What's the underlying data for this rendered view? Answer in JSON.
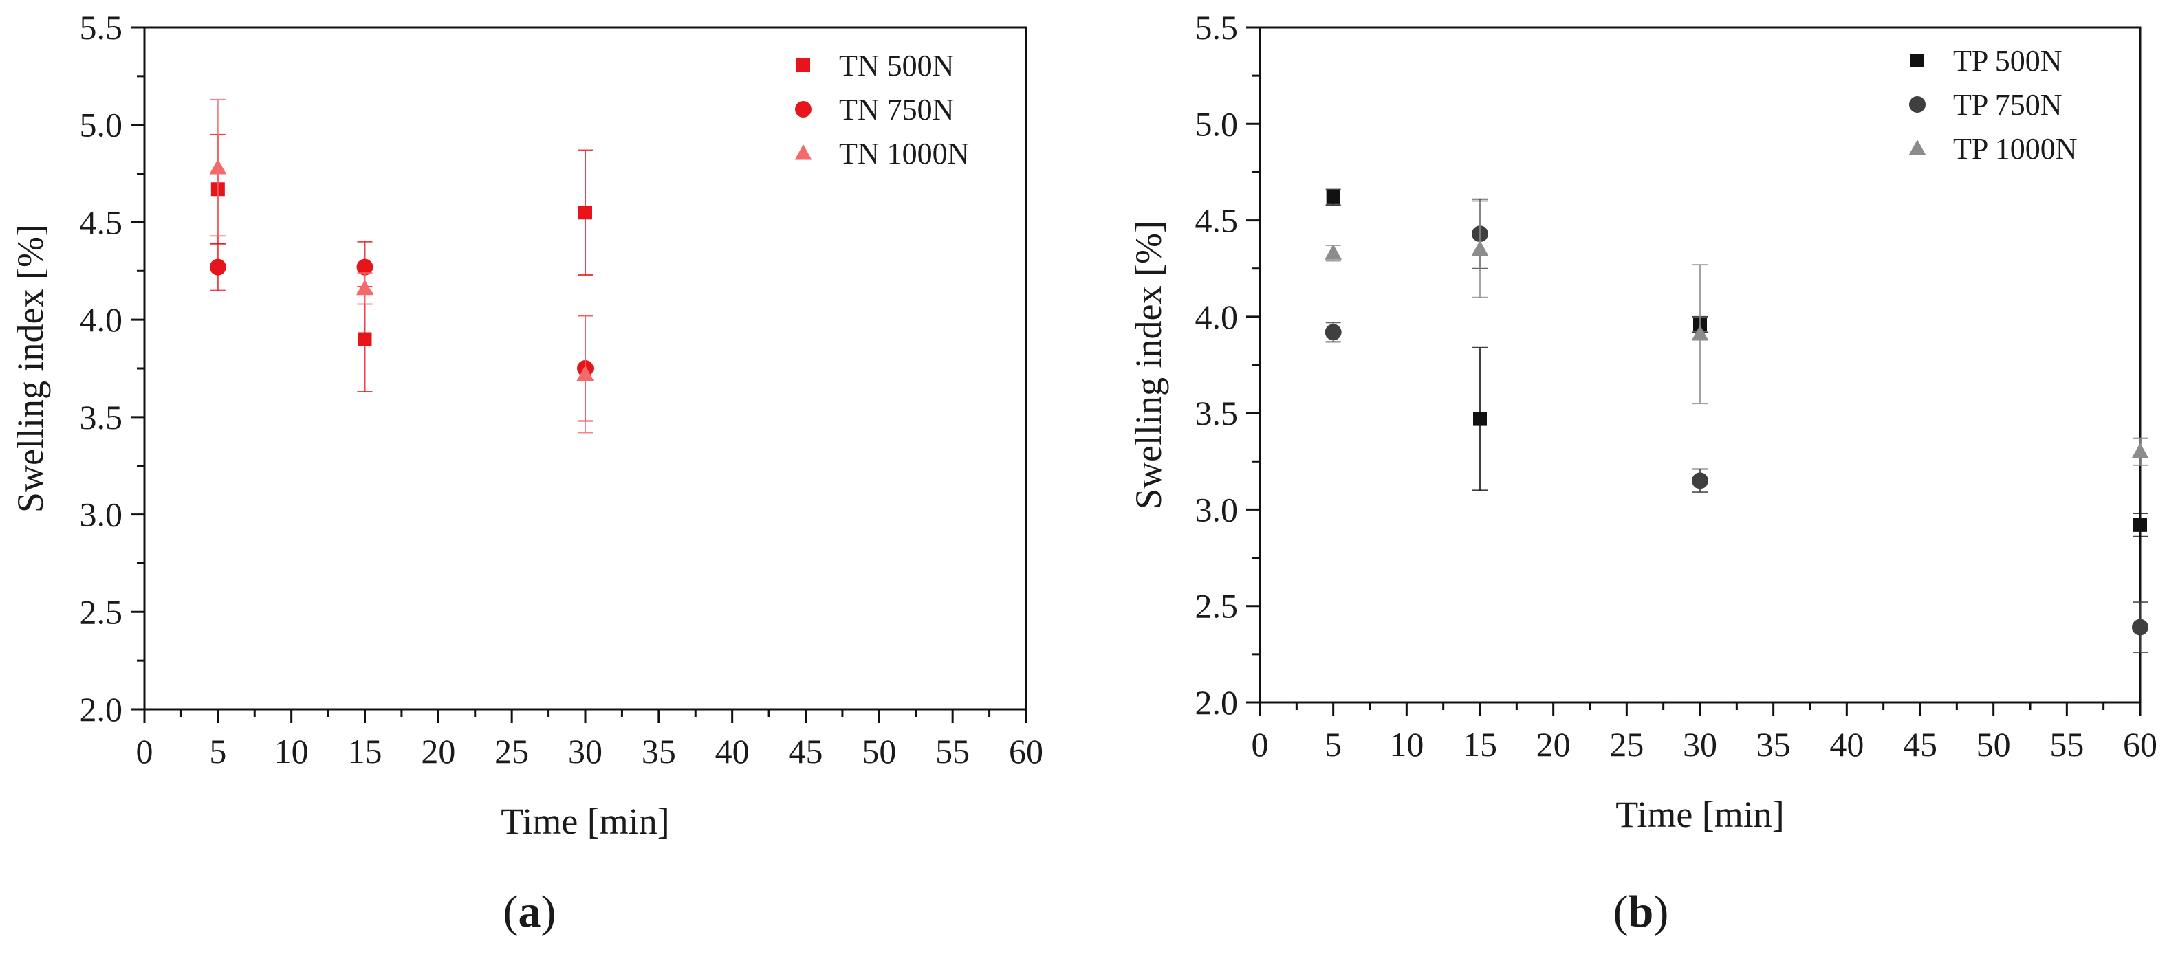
{
  "chart_data": [
    {
      "type": "scatter",
      "panel_label": "a",
      "xlabel": "Time [min]",
      "ylabel": "Swelling index [%]",
      "xlim": [
        0,
        60
      ],
      "ylim": [
        2.0,
        5.5
      ],
      "xticks": [
        "0",
        "5",
        "10",
        "15",
        "20",
        "25",
        "30",
        "35",
        "40",
        "45",
        "50",
        "55",
        "60"
      ],
      "yticks": [
        "2.0",
        "2.5",
        "3.0",
        "3.5",
        "4.0",
        "4.5",
        "5.0",
        "5.5"
      ],
      "legend_position": "top-right",
      "series": [
        {
          "name": "TN 500N",
          "marker": "square",
          "color": "#e8141b",
          "x": [
            5,
            15,
            30
          ],
          "y": [
            4.67,
            3.9,
            4.55
          ],
          "err": [
            0.28,
            0.27,
            0.32
          ]
        },
        {
          "name": "TN 750N",
          "marker": "circle",
          "color": "#e8141b",
          "x": [
            5,
            15,
            30
          ],
          "y": [
            4.27,
            4.27,
            3.75
          ],
          "err": [
            0.12,
            0.13,
            0.27
          ]
        },
        {
          "name": "TN 1000N",
          "marker": "triangle",
          "color": "#f26b6b",
          "x": [
            5,
            15,
            30
          ],
          "y": [
            4.78,
            4.16,
            3.72
          ],
          "err": [
            0.35,
            0.08,
            0.3
          ]
        }
      ]
    },
    {
      "type": "scatter",
      "panel_label": "b",
      "xlabel": "Time [min]",
      "ylabel": "Swelling index [%]",
      "xlim": [
        0,
        60
      ],
      "ylim": [
        2.0,
        5.5
      ],
      "xticks": [
        "0",
        "5",
        "10",
        "15",
        "20",
        "25",
        "30",
        "35",
        "40",
        "45",
        "50",
        "55",
        "60"
      ],
      "yticks": [
        "2.0",
        "2.5",
        "3.0",
        "3.5",
        "4.0",
        "4.5",
        "5.0",
        "5.5"
      ],
      "legend_position": "top-right",
      "series": [
        {
          "name": "TP 500N",
          "marker": "square",
          "color": "#111111",
          "x": [
            5,
            15,
            30,
            60
          ],
          "y": [
            4.62,
            3.47,
            3.96,
            2.92
          ],
          "err": [
            0.04,
            0.37,
            0.04,
            0.06
          ]
        },
        {
          "name": "TP 750N",
          "marker": "circle",
          "color": "#3f3f3f",
          "x": [
            5,
            15,
            30,
            60
          ],
          "y": [
            3.92,
            4.43,
            3.15,
            2.39
          ],
          "err": [
            0.05,
            0.18,
            0.06,
            0.13
          ]
        },
        {
          "name": "TP 1000N",
          "marker": "triangle",
          "color": "#8c8c8c",
          "x": [
            5,
            15,
            30,
            60
          ],
          "y": [
            4.33,
            4.35,
            3.91,
            3.3
          ],
          "err": [
            0.04,
            0.25,
            0.36,
            0.07
          ]
        }
      ]
    }
  ]
}
